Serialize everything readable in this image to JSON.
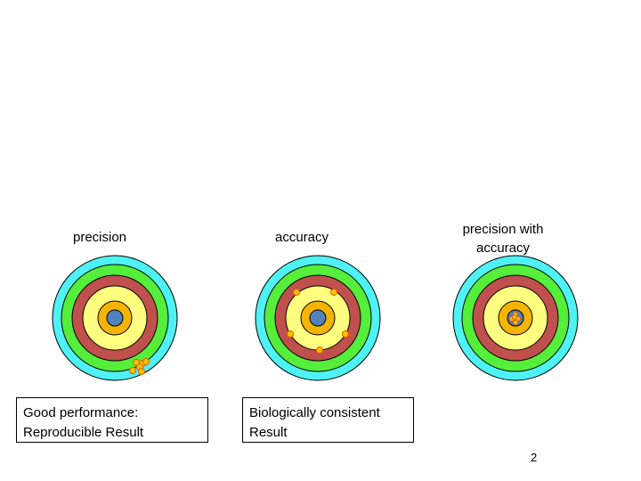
{
  "slide": {
    "page_number": "2",
    "ring_colors": {
      "outer": "#4ff2f4",
      "second": "#55ee3a",
      "third": "#c0504d",
      "fourth": "#ffff80",
      "fifth": "#f5b400",
      "bullseye": "#4f81bd",
      "hit": "#ffc000",
      "hit_stroke": "#e06000"
    },
    "panels": [
      {
        "title": "precision",
        "description_lines": [
          "Good performance:",
          "Reproducible Result"
        ]
      },
      {
        "title": "accuracy",
        "description_lines": [
          "Biologically consistent",
          "Result"
        ]
      },
      {
        "title_lines": [
          "precision with",
          "accuracy"
        ]
      }
    ]
  }
}
